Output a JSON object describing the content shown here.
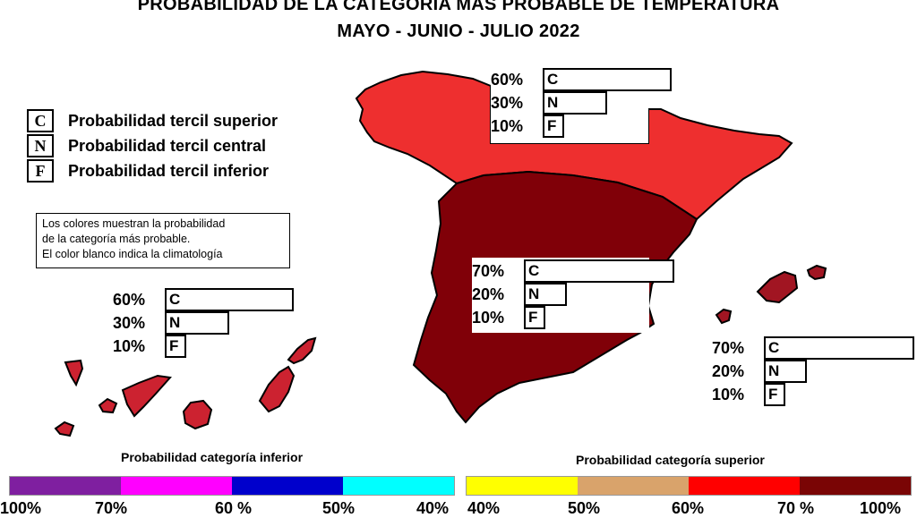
{
  "title": {
    "line1": "PROBABILIDAD DE LA CATEGORÍA MÁS PROBABLE DE  TEMPERATURA",
    "line2": "MAYO - JUNIO - JULIO 2022"
  },
  "legend": [
    {
      "key": "C",
      "text": "Probabilidad  tercil superior"
    },
    {
      "key": "N",
      "text": "Probabilidad  tercil central"
    },
    {
      "key": "F",
      "text": "Probabilidad  tercil inferior"
    }
  ],
  "note": [
    "Los colores muestran la probabilidad",
    "de la categoría más probable.",
    "El color blanco indica la climatología"
  ],
  "regions": {
    "north": {
      "color": "#ee2f2f",
      "probs": [
        {
          "pct": "60%",
          "cat": "C",
          "value": 60
        },
        {
          "pct": "30%",
          "cat": "N",
          "value": 30
        },
        {
          "pct": "10%",
          "cat": "F",
          "value": 10
        }
      ]
    },
    "central": {
      "color": "#800008",
      "probs": [
        {
          "pct": "70%",
          "cat": "C",
          "value": 70
        },
        {
          "pct": "20%",
          "cat": "N",
          "value": 20
        },
        {
          "pct": "10%",
          "cat": "F",
          "value": 10
        }
      ]
    },
    "canarias": {
      "color": "#cc2230",
      "probs": [
        {
          "pct": "60%",
          "cat": "C",
          "value": 60
        },
        {
          "pct": "30%",
          "cat": "N",
          "value": 30
        },
        {
          "pct": "10%",
          "cat": "F",
          "value": 10
        }
      ]
    },
    "baleares": {
      "color": "#a11522",
      "probs": [
        {
          "pct": "70%",
          "cat": "C",
          "value": 70
        },
        {
          "pct": "20%",
          "cat": "N",
          "value": 20
        },
        {
          "pct": "10%",
          "cat": "F",
          "value": 10
        }
      ]
    }
  },
  "scale": {
    "lower_title": "Probabilidad categoría inferior",
    "upper_title": "Probabilidad categoría superior",
    "lower_colors": [
      "#7f1fa0",
      "#ff00ff",
      "#0000cc",
      "#00ffff"
    ],
    "upper_colors": [
      "#ffff00",
      "#d9a36b",
      "#ff0000",
      "#7a0505"
    ],
    "lower_ticks": [
      "100%",
      "70%",
      "60 %",
      "50%",
      "40%"
    ],
    "upper_ticks": [
      "40%",
      "50%",
      "60%",
      "70 %",
      "100%"
    ]
  }
}
